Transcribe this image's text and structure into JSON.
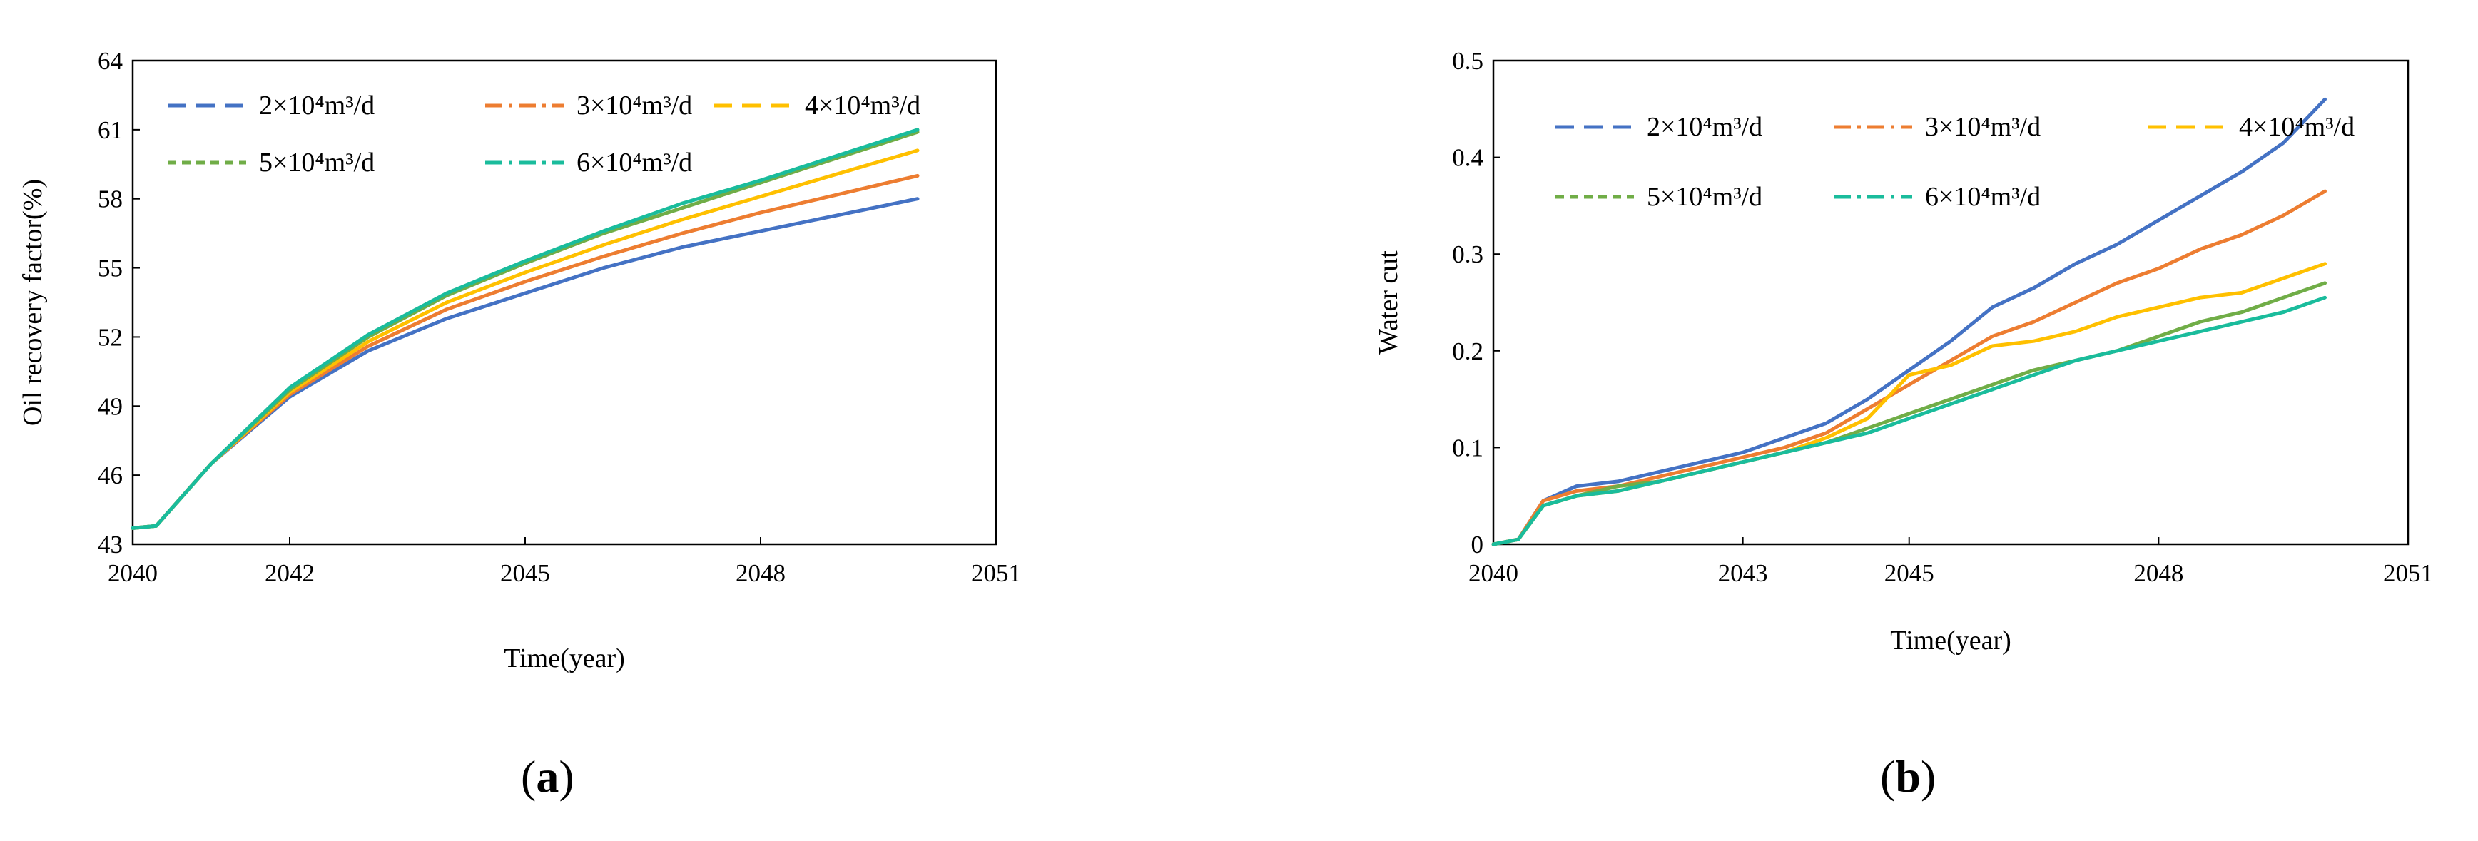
{
  "chart_data": [
    {
      "panel": "(a)",
      "panel_letter": "a",
      "type": "line",
      "title": "",
      "xlabel": "Time(year)",
      "ylabel": "Oil recovery factor(%)",
      "xlim": [
        2040,
        2051
      ],
      "ylim": [
        43,
        64
      ],
      "xticks": [
        2040,
        2042,
        2045,
        2048,
        2051
      ],
      "xtick_labels": [
        "2040",
        "2042",
        "2045",
        "2048",
        "2051"
      ],
      "yticks": [
        43,
        46,
        49,
        52,
        55,
        58,
        61,
        64
      ],
      "ytick_labels": [
        "43",
        "46",
        "49",
        "52",
        "55",
        "58",
        "61",
        "64"
      ],
      "legend_position": "top-left",
      "grid": false,
      "x": [
        2040,
        2040.3,
        2041,
        2042,
        2043,
        2044,
        2045,
        2046,
        2047,
        2048,
        2049,
        2050
      ],
      "series": [
        {
          "name": "2×10⁴m³/d",
          "color": "#4472C4",
          "dash": "long-dash",
          "values": [
            43.7,
            43.8,
            46.5,
            49.4,
            51.4,
            52.8,
            53.9,
            55.0,
            55.9,
            56.6,
            57.3,
            58.0
          ]
        },
        {
          "name": "3×10⁴m³/d",
          "color": "#ED7D31",
          "dash": "dash-dot",
          "values": [
            43.7,
            43.8,
            46.5,
            49.5,
            51.6,
            53.2,
            54.4,
            55.5,
            56.5,
            57.4,
            58.2,
            59.0
          ]
        },
        {
          "name": "4×10⁴m³/d",
          "color": "#FFC000",
          "dash": "long-dash",
          "values": [
            43.7,
            43.8,
            46.5,
            49.6,
            51.8,
            53.5,
            54.8,
            56.0,
            57.1,
            58.1,
            59.1,
            60.1
          ]
        },
        {
          "name": "5×10⁴m³/d",
          "color": "#70AD47",
          "dash": "short-dash",
          "values": [
            43.7,
            43.8,
            46.5,
            49.7,
            52.0,
            53.8,
            55.2,
            56.5,
            57.6,
            58.7,
            59.8,
            60.9
          ]
        },
        {
          "name": "6×10⁴m³/d",
          "color": "#1ABC9C",
          "dash": "dash-dot",
          "values": [
            43.7,
            43.8,
            46.5,
            49.8,
            52.1,
            53.9,
            55.3,
            56.6,
            57.8,
            58.8,
            59.9,
            61.0
          ]
        }
      ]
    },
    {
      "panel": "(b)",
      "panel_letter": "b",
      "type": "line",
      "title": "",
      "xlabel": "Time(year)",
      "ylabel": "Water cut",
      "xlim": [
        2040,
        2051
      ],
      "ylim": [
        0,
        0.5
      ],
      "xticks": [
        2040,
        2043,
        2045,
        2048,
        2051
      ],
      "xtick_labels": [
        "2040",
        "2043",
        "2045",
        "2048",
        "2051"
      ],
      "yticks": [
        0,
        0.1,
        0.2,
        0.3,
        0.4,
        0.5
      ],
      "ytick_labels": [
        "0",
        "0.1",
        "0.2",
        "0.3",
        "0.4",
        "0.5"
      ],
      "legend_position": "top",
      "grid": false,
      "x": [
        2040,
        2040.3,
        2040.6,
        2041,
        2041.5,
        2042,
        2042.5,
        2043,
        2043.5,
        2044,
        2044.5,
        2045,
        2045.5,
        2046,
        2046.5,
        2047,
        2047.5,
        2048,
        2048.5,
        2049,
        2049.5,
        2050
      ],
      "series": [
        {
          "name": "2×10⁴m³/d",
          "color": "#4472C4",
          "dash": "long-dash",
          "values": [
            0,
            0.005,
            0.045,
            0.06,
            0.065,
            0.075,
            0.085,
            0.095,
            0.11,
            0.125,
            0.15,
            0.18,
            0.21,
            0.245,
            0.265,
            0.29,
            0.31,
            0.335,
            0.36,
            0.385,
            0.415,
            0.46
          ]
        },
        {
          "name": "3×10⁴m³/d",
          "color": "#ED7D31",
          "dash": "dash-dot",
          "values": [
            0,
            0.005,
            0.045,
            0.055,
            0.06,
            0.07,
            0.08,
            0.09,
            0.1,
            0.115,
            0.14,
            0.165,
            0.19,
            0.215,
            0.23,
            0.25,
            0.27,
            0.285,
            0.305,
            0.32,
            0.34,
            0.365
          ]
        },
        {
          "name": "4×10⁴m³/d",
          "color": "#FFC000",
          "dash": "long-dash",
          "values": [
            0,
            0.005,
            0.04,
            0.05,
            0.055,
            0.065,
            0.075,
            0.085,
            0.095,
            0.11,
            0.13,
            0.175,
            0.185,
            0.205,
            0.21,
            0.22,
            0.235,
            0.245,
            0.255,
            0.26,
            0.275,
            0.29
          ]
        },
        {
          "name": "5×10⁴m³/d",
          "color": "#70AD47",
          "dash": "short-dash",
          "values": [
            0,
            0.005,
            0.04,
            0.05,
            0.06,
            0.065,
            0.075,
            0.085,
            0.095,
            0.105,
            0.12,
            0.135,
            0.15,
            0.165,
            0.18,
            0.19,
            0.2,
            0.215,
            0.23,
            0.24,
            0.255,
            0.27
          ]
        },
        {
          "name": "6×10⁴m³/d",
          "color": "#1ABC9C",
          "dash": "dash-dot",
          "values": [
            0,
            0.005,
            0.04,
            0.05,
            0.055,
            0.065,
            0.075,
            0.085,
            0.095,
            0.105,
            0.115,
            0.13,
            0.145,
            0.16,
            0.175,
            0.19,
            0.2,
            0.21,
            0.22,
            0.23,
            0.24,
            0.255
          ]
        }
      ]
    }
  ]
}
